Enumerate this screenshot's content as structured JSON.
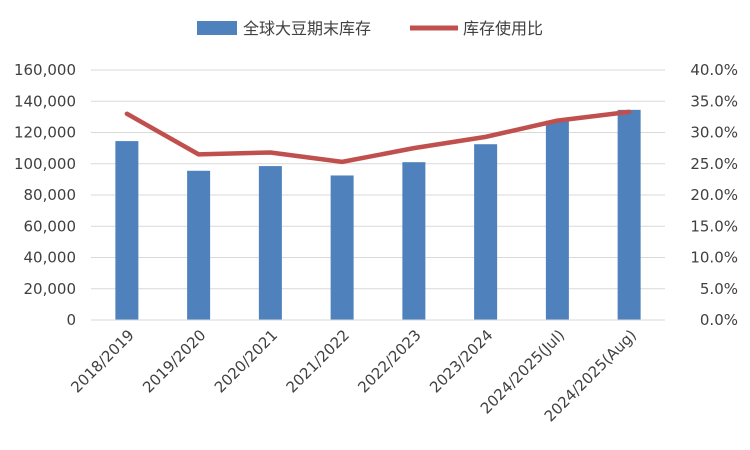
{
  "chart_data": {
    "type": "bar+line",
    "categories": [
      "2018/2019",
      "2019/2020",
      "2020/2021",
      "2021/2022",
      "2022/2023",
      "2023/2024",
      "2024/2025(Jul)",
      "2024/2025(Aug)"
    ],
    "series": [
      {
        "name": "全球大豆期末库存",
        "type": "bar",
        "axis": "left",
        "color": "#4F81BD",
        "values": [
          114500,
          95500,
          98500,
          92500,
          101000,
          112500,
          127500,
          134500
        ]
      },
      {
        "name": "库存使用比",
        "type": "line",
        "axis": "right",
        "color": "#C0504D",
        "values": [
          33.0,
          26.5,
          26.8,
          25.3,
          27.5,
          29.3,
          31.9,
          33.3
        ]
      }
    ],
    "y_left": {
      "ylim": [
        0,
        160000
      ],
      "ticks": [
        0,
        20000,
        40000,
        60000,
        80000,
        100000,
        120000,
        140000,
        160000
      ],
      "tick_labels": [
        "0",
        "20,000",
        "40,000",
        "60,000",
        "80,000",
        "100,000",
        "120,000",
        "140,000",
        "160,000"
      ]
    },
    "y_right": {
      "ylim": [
        0,
        40
      ],
      "ticks": [
        0,
        5,
        10,
        15,
        20,
        25,
        30,
        35,
        40
      ],
      "tick_labels": [
        "0.0%",
        "5.0%",
        "10.0%",
        "15.0%",
        "20.0%",
        "25.0%",
        "30.0%",
        "35.0%",
        "40.0%"
      ]
    },
    "grid": true,
    "legend_position": "top-center"
  }
}
